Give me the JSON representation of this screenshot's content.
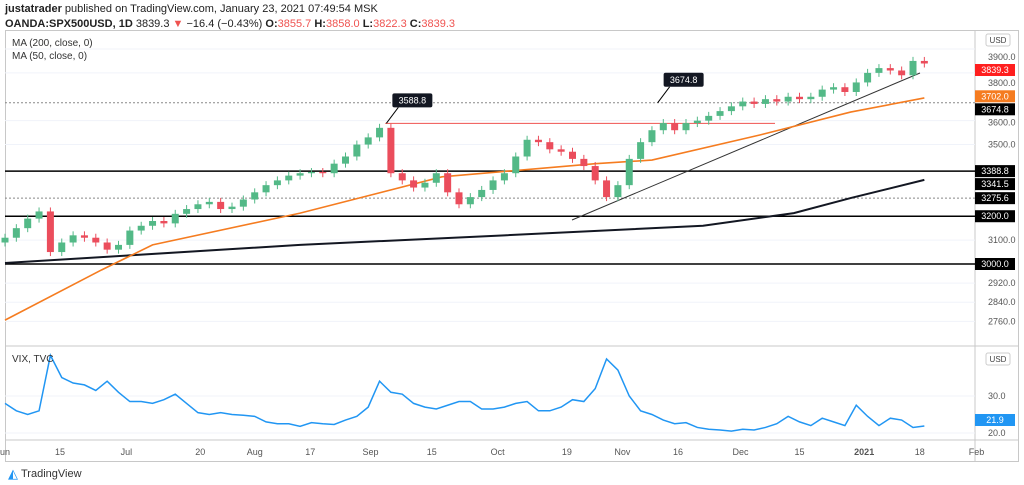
{
  "header": {
    "author": "justatrader",
    "published": "published on TradingView.com, January 23, 2021 07:49:54 MSK",
    "symbol": "OANDA:SPX500USD, 1D",
    "last": "3839.3",
    "change": "−16.4 (−0.43%)",
    "o_label": "O:",
    "o": "3855.7",
    "h_label": "H:",
    "h": "3858.0",
    "l_label": "L:",
    "l": "3822.3",
    "c_label": "C:",
    "c": "3839.3"
  },
  "legend": {
    "ma200": "MA (200, close, 0)",
    "ma50": "MA (50, close, 0)",
    "vix": "VIX, TVC"
  },
  "currency": "USD",
  "footer": {
    "brand": "TradingView"
  },
  "colors": {
    "up": "#53b987",
    "down": "#eb4d5c",
    "ma50": "#f57c20",
    "ma200": "#131722",
    "vix": "#2196f3",
    "last": "#ff1f1f"
  },
  "chart_data": [
    {
      "type": "candlestick",
      "title": "OANDA:SPX500USD, 1D",
      "ylim": [
        2720,
        3960
      ],
      "grid": true,
      "yticks": [
        "3900.0",
        "3800.0",
        "3600.0",
        "3500.0",
        "3100.0",
        "2920.0",
        "2840.0",
        "2760.0"
      ],
      "closes": [
        3110,
        3150,
        3190,
        3220,
        3050,
        3090,
        3120,
        3110,
        3090,
        3060,
        3080,
        3140,
        3160,
        3180,
        3170,
        3210,
        3230,
        3250,
        3260,
        3230,
        3240,
        3270,
        3300,
        3330,
        3350,
        3370,
        3380,
        3385,
        3380,
        3420,
        3450,
        3500,
        3530,
        3570,
        3380,
        3350,
        3320,
        3340,
        3380,
        3300,
        3250,
        3280,
        3310,
        3350,
        3380,
        3450,
        3520,
        3510,
        3480,
        3470,
        3440,
        3410,
        3350,
        3280,
        3330,
        3440,
        3510,
        3560,
        3590,
        3560,
        3590,
        3600,
        3620,
        3640,
        3660,
        3680,
        3670,
        3690,
        3680,
        3700,
        3690,
        3700,
        3730,
        3740,
        3720,
        3760,
        3800,
        3820,
        3810,
        3790,
        3850,
        3839.3
      ],
      "ma50": [
        [
          0,
          2765
        ],
        [
          17,
          2975
        ],
        [
          26,
          3080
        ],
        [
          52,
          3213
        ],
        [
          77,
          3365
        ],
        [
          104,
          3420
        ],
        [
          114,
          3435
        ],
        [
          133,
          3540
        ],
        [
          149,
          3636
        ],
        [
          162,
          3695
        ]
      ],
      "ma200": [
        [
          0,
          3004
        ],
        [
          52,
          3080
        ],
        [
          88,
          3120
        ],
        [
          123,
          3160
        ],
        [
          139,
          3213
        ],
        [
          149,
          3276
        ],
        [
          162,
          3352
        ]
      ],
      "price_labels": [
        {
          "value": "3839.3",
          "kind": "last"
        },
        {
          "value": "3702.0",
          "kind": "ma50"
        },
        {
          "value": "3674.8",
          "kind": "level"
        },
        {
          "value": "3388.8",
          "kind": "level"
        },
        {
          "value": "3341.5",
          "kind": "ma200"
        },
        {
          "value": "3275.6",
          "kind": "level"
        },
        {
          "value": "3200.0",
          "kind": "level"
        },
        {
          "value": "3000.0",
          "kind": "level"
        }
      ],
      "annotations": [
        {
          "text": "3588.8",
          "price": 3588.8
        },
        {
          "text": "3674.8",
          "price": 3674.8
        }
      ],
      "levels": [
        {
          "price": 3388.8,
          "style": "solid"
        },
        {
          "price": 3200,
          "style": "solid"
        },
        {
          "price": 3000,
          "style": "solid"
        },
        {
          "price": 3275.6,
          "style": "dotted"
        },
        {
          "price": 3674.8,
          "style": "dotted"
        },
        {
          "price": 3588.8,
          "style": "red"
        }
      ]
    },
    {
      "type": "line",
      "title": "VIX, TVC",
      "ylim": [
        18,
        43
      ],
      "yticks": [
        "30.0",
        "20.0"
      ],
      "last": "21.9",
      "values": [
        28,
        26,
        25,
        26,
        41,
        35,
        33.5,
        33,
        31.5,
        34,
        31,
        28.5,
        28.5,
        28,
        29,
        30.5,
        28,
        25.5,
        25,
        25.5,
        25,
        24.8,
        24.5,
        23,
        22.5,
        22.5,
        21.8,
        22.8,
        22.5,
        22.3,
        23.5,
        24.5,
        27,
        34,
        31,
        30.5,
        28,
        27,
        26.5,
        27.5,
        28.5,
        28.5,
        26.5,
        26.5,
        27,
        28,
        28.5,
        26,
        26,
        27,
        29,
        28.5,
        32,
        40,
        37,
        30,
        26,
        25,
        23.5,
        22.5,
        22.8,
        21.5,
        21,
        20.8,
        20.5,
        21,
        20.8,
        21.5,
        22.5,
        24.5,
        23,
        22,
        24,
        23,
        22,
        27.5,
        24.5,
        22,
        24,
        23.5,
        21.5,
        21.9
      ]
    },
    {
      "type": "axis",
      "xticks": [
        {
          "label": "Jun",
          "bar": -0.2
        },
        {
          "label": "15",
          "bar": 4.85
        },
        {
          "label": "Jul",
          "bar": 10.7
        },
        {
          "label": "20",
          "bar": 17.2
        },
        {
          "label": "Aug",
          "bar": 22
        },
        {
          "label": "17",
          "bar": 26.9
        },
        {
          "label": "Sep",
          "bar": 32.2
        },
        {
          "label": "15",
          "bar": 37.6
        },
        {
          "label": "Oct",
          "bar": 43.4
        },
        {
          "label": "19",
          "bar": 49.5
        },
        {
          "label": "Nov",
          "bar": 54.4
        },
        {
          "label": "16",
          "bar": 59.3
        },
        {
          "label": "Dec",
          "bar": 64.8
        },
        {
          "label": "15",
          "bar": 70
        },
        {
          "label": "2021",
          "bar": 75.7
        },
        {
          "label": "18",
          "bar": 80.6
        },
        {
          "label": "Feb",
          "bar": 85.6
        }
      ]
    }
  ]
}
